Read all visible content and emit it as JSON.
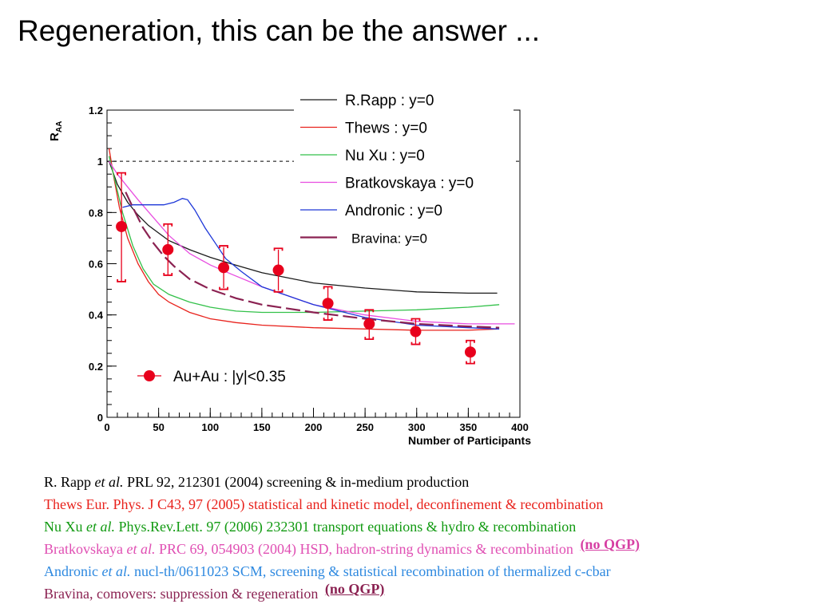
{
  "slide": {
    "title": "Regeneration, this can be the answer ..."
  },
  "chart_data": {
    "type": "line",
    "ylabel": "R",
    "ylabel_sub": "AA",
    "xlabel": "Number of Participants",
    "xlim": [
      0,
      400
    ],
    "ylim": [
      0,
      1.2
    ],
    "xticks": [
      "0",
      "50",
      "100",
      "150",
      "200",
      "250",
      "300",
      "350",
      "400"
    ],
    "yticks": [
      "0",
      "0.2",
      "0.4",
      "0.6",
      "0.8",
      "1",
      "1.2"
    ],
    "reference_line_y": 1.0,
    "series": [
      {
        "name": "R.Rapp : y=0",
        "color": "#1a1a1a",
        "dash": "",
        "x": [
          2,
          10,
          20,
          30,
          40,
          50,
          60,
          80,
          100,
          120,
          150,
          200,
          250,
          300,
          350,
          378
        ],
        "y": [
          1.0,
          0.91,
          0.84,
          0.79,
          0.75,
          0.72,
          0.69,
          0.655,
          0.625,
          0.6,
          0.565,
          0.525,
          0.505,
          0.49,
          0.485,
          0.485
        ]
      },
      {
        "name": "Thews : y=0",
        "color": "#e8221c",
        "dash": "",
        "x": [
          2,
          6,
          12,
          20,
          30,
          40,
          50,
          60,
          80,
          100,
          125,
          150,
          200,
          250,
          300,
          350,
          378
        ],
        "y": [
          1.05,
          0.95,
          0.82,
          0.7,
          0.6,
          0.53,
          0.48,
          0.45,
          0.41,
          0.385,
          0.37,
          0.36,
          0.35,
          0.345,
          0.34,
          0.34,
          0.345
        ]
      },
      {
        "name": "Nu Xu : y=0",
        "color": "#33c14a",
        "dash": "",
        "x": [
          2,
          8,
          15,
          25,
          35,
          45,
          60,
          80,
          100,
          125,
          150,
          200,
          250,
          300,
          350,
          380
        ],
        "y": [
          1.02,
          0.92,
          0.8,
          0.67,
          0.58,
          0.52,
          0.48,
          0.45,
          0.43,
          0.415,
          0.41,
          0.41,
          0.415,
          0.42,
          0.43,
          0.44
        ]
      },
      {
        "name": "Bratkovskaya : y=0",
        "color": "#e84de0",
        "dash": "",
        "x": [
          2,
          10,
          20,
          30,
          45,
          60,
          80,
          100,
          120,
          150,
          200,
          250,
          300,
          350,
          395
        ],
        "y": [
          1.0,
          0.95,
          0.9,
          0.85,
          0.78,
          0.71,
          0.64,
          0.595,
          0.56,
          0.51,
          0.44,
          0.4,
          0.375,
          0.365,
          0.365
        ]
      },
      {
        "name": "Andronic : y=0",
        "color": "#1d37d8",
        "dash": "",
        "x": [
          15,
          25,
          40,
          55,
          65,
          73,
          78,
          85,
          95,
          105,
          115,
          130,
          150,
          200,
          250,
          300,
          350,
          380
        ],
        "y": [
          0.82,
          0.83,
          0.83,
          0.83,
          0.84,
          0.855,
          0.85,
          0.81,
          0.74,
          0.68,
          0.62,
          0.57,
          0.51,
          0.44,
          0.39,
          0.36,
          0.35,
          0.345
        ]
      },
      {
        "name": "Bravina: y=0",
        "color": "#8b2252",
        "dash": "18,6",
        "x": [
          18,
          25,
          35,
          45,
          55,
          65,
          80,
          100,
          125,
          150,
          200,
          250,
          300,
          350,
          380
        ],
        "y": [
          0.88,
          0.82,
          0.74,
          0.68,
          0.63,
          0.59,
          0.54,
          0.5,
          0.465,
          0.44,
          0.41,
          0.385,
          0.365,
          0.355,
          0.35
        ]
      }
    ],
    "data_series": {
      "name": "Au+Au : |y|<0.35",
      "color": "#e8001c",
      "x": [
        14,
        59,
        113,
        166,
        214,
        254,
        299,
        352
      ],
      "y": [
        0.745,
        0.655,
        0.585,
        0.575,
        0.445,
        0.365,
        0.335,
        0.255
      ],
      "err_low": [
        0.215,
        0.1,
        0.08,
        0.08,
        0.065,
        0.06,
        0.05,
        0.045
      ],
      "err_high": [
        0.21,
        0.1,
        0.08,
        0.08,
        0.065,
        0.055,
        0.05,
        0.045
      ],
      "sys_low": [
        0.215,
        0.1,
        0.085,
        0.085,
        0.065,
        0.06,
        0.05,
        0.045
      ],
      "sys_high": [
        0.21,
        0.1,
        0.085,
        0.085,
        0.065,
        0.055,
        0.05,
        0.045
      ]
    },
    "legend_top_right": [
      "R.Rapp : y=0",
      "Thews : y=0",
      "Nu Xu : y=0",
      "Bratkovskaya : y=0",
      "Andronic : y=0",
      "Bravina: y=0"
    ],
    "legend_bottom_left": "Au+Au : |y|<0.35"
  },
  "references": [
    {
      "author": "R. Rapp",
      "etal": "et al.",
      "text": " PRL 92, 212301 (2004) screening & in-medium production",
      "color": "#000000",
      "tag": ""
    },
    {
      "author": "Thews",
      "etal": "",
      "text": " Eur. Phys. J C43, 97 (2005) statistical and kinetic model,  deconfinement & recombination",
      "color": "#e8221c",
      "tag": ""
    },
    {
      "author": "Nu Xu",
      "etal": "et al.",
      "text": " Phys.Rev.Lett. 97 (2006) 232301 transport equations & hydro & recombination",
      "color": "#119a11",
      "tag": ""
    },
    {
      "author": "Bratkovskaya",
      "etal": "et al.",
      "text": " PRC 69, 054903 (2004) HSD, hadron-string dynamics & recombination",
      "color": "#e04fb3",
      "tag": "(no QGP)"
    },
    {
      "author": "Andronic",
      "etal": "et al.",
      "text": " nucl-th/0611023 SCM, screening & statistical recombination of thermalized c-cbar",
      "color": "#2e89e0",
      "tag": ""
    },
    {
      "author": "Bravina",
      "etal": "",
      "text": ", comovers: suppression & regeneration",
      "color": "#8b2252",
      "tag": "(no QGP)"
    }
  ]
}
